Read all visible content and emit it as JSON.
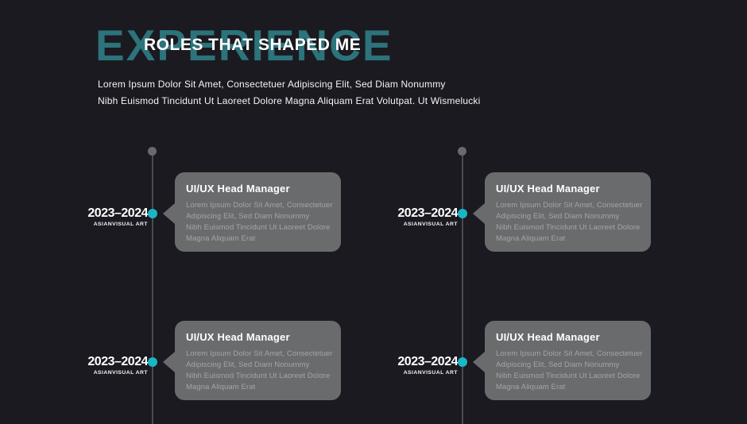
{
  "header": {
    "title_back": "EXPERIENCE",
    "title_front": "ROLES THAT SHAPED ME",
    "subtitle_lines": [
      "Lorem Ipsum Dolor Sit Amet, Consectetuer Adipiscing Elit, Sed Diam Nonummy",
      "Nibh Euismod Tincidunt Ut Laoreet Dolore Magna Aliquam Erat Volutpat. Ut Wismelucki"
    ]
  },
  "timeline": {
    "entries": [
      {
        "date": "2023–2024",
        "organization": "ASIANVISUAL ART",
        "title": "UI/UX Head Manager",
        "body_lines": [
          "Lorem Ipsum Dolor Sit Amet, Consectetuer",
          "Adipiscing Elit, Sed Diam Nonummy",
          "Nibh Euismod Tincidunt Ut Laoreet Dolore",
          "Magna Aliquam Erat"
        ]
      },
      {
        "date": "2023–2024",
        "organization": "ASIANVISUAL ART",
        "title": "UI/UX Head Manager",
        "body_lines": [
          "Lorem Ipsum Dolor Sit Amet, Consectetuer",
          "Adipiscing Elit, Sed Diam Nonummy",
          "Nibh Euismod Tincidunt Ut Laoreet Dolore",
          "Magna Aliquam Erat"
        ]
      },
      {
        "date": "2023–2024",
        "organization": "ASIANVISUAL ART",
        "title": "UI/UX Head Manager",
        "body_lines": [
          "Lorem Ipsum Dolor Sit Amet, Consectetuer",
          "Adipiscing Elit, Sed Diam Nonummy",
          "Nibh Euismod Tincidunt Ut Laoreet Dolore",
          "Magna Aliquam Erat"
        ]
      },
      {
        "date": "2023–2024",
        "organization": "ASIANVISUAL ART",
        "title": "UI/UX Head Manager",
        "body_lines": [
          "Lorem Ipsum Dolor Sit Amet, Consectetuer",
          "Adipiscing Elit, Sed Diam Nonummy",
          "Nibh Euismod Tincidunt Ut Laoreet Dolore",
          "Magna Aliquam Erat"
        ]
      }
    ]
  },
  "colors": {
    "background": "#1a1a20",
    "title-teal": "#2c737b",
    "accent-teal": "#1ab6c6",
    "card-bg": "#6a6b6d",
    "card-text": "#a4a5a9",
    "line-gray": "#4a4b52",
    "start-dot-gray": "#696a70",
    "text-white": "#f4f5f7"
  }
}
